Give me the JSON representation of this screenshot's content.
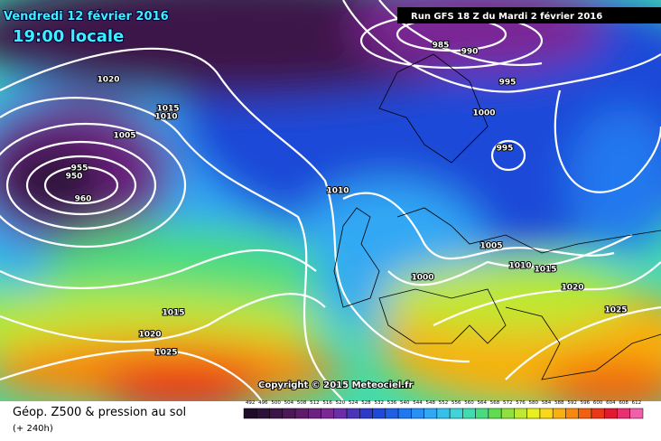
{
  "header": {
    "date": "Vendredi 12 février 2016",
    "time": "19:00 locale",
    "run": "Run GFS 18 Z du Mardi 2 février 2016"
  },
  "copyright": "Copyright © 2015 Meteociel.fr",
  "footer": {
    "title": "Géop. Z500 & pression au sol",
    "lead": "(+ 240h)"
  },
  "legend": {
    "levels": [
      492,
      496,
      500,
      504,
      508,
      512,
      516,
      520,
      524,
      528,
      532,
      536,
      540,
      544,
      548,
      552,
      556,
      560,
      564,
      568,
      572,
      576,
      580,
      584,
      588,
      592,
      596,
      600,
      604,
      608,
      612
    ],
    "colors": [
      "#1e0c28",
      "#2c1238",
      "#3c1448",
      "#4c1858",
      "#5c1c6a",
      "#6c2080",
      "#7c2894",
      "#6a2fa8",
      "#4a34b8",
      "#2e3ac8",
      "#1e4ad8",
      "#1e60e4",
      "#2078ee",
      "#2890f4",
      "#30a8f4",
      "#38c0ec",
      "#40d4d8",
      "#40dcb0",
      "#48dc80",
      "#60dc50",
      "#90e040",
      "#c0e830",
      "#e8f020",
      "#f8d818",
      "#f8b010",
      "#f88810",
      "#f06010",
      "#e83818",
      "#e01830",
      "#e83070",
      "#f060a8"
    ]
  },
  "isobar_labels": [
    "1020",
    "1015",
    "1010",
    "1005",
    "955",
    "950",
    "960",
    "985",
    "990",
    "995",
    "1000",
    "995",
    "1010",
    "1005",
    "1010",
    "1015",
    "1000",
    "1020",
    "1025",
    "1015",
    "1020",
    "1025"
  ]
}
